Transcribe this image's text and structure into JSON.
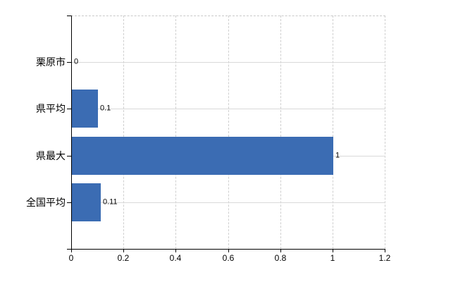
{
  "chart_data": {
    "type": "bar",
    "orientation": "horizontal",
    "title": "",
    "categories": [
      "栗原市",
      "県平均",
      "県最大",
      "全国平均"
    ],
    "values": [
      0,
      0.1,
      1,
      0.11
    ],
    "value_labels": [
      "0",
      "0.1",
      "1",
      "0.11"
    ],
    "xlim": [
      0,
      1.2
    ],
    "x_tick_values": [
      0,
      0.2,
      0.4,
      0.6,
      0.8,
      1,
      1.2
    ],
    "x_tick_labels": [
      "0",
      "0.2",
      "0.4",
      "0.6",
      "0.8",
      "1",
      "1.2"
    ],
    "grid": true,
    "legend": "none",
    "colors": {
      "bar": "#3b6cb3",
      "gridline": "#d9d9d9",
      "gridline_dashed": "#cfcfcf",
      "plot_border_top": "#c9c9c9",
      "axis": "#000000",
      "text": "#000000",
      "background": "#ffffff"
    }
  }
}
